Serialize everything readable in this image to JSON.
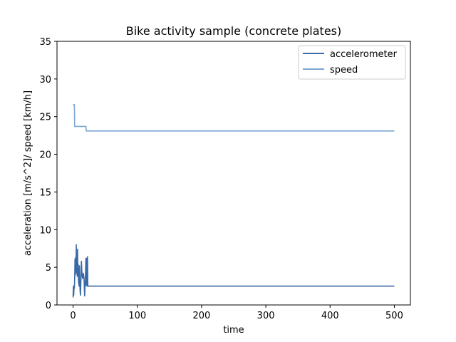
{
  "chart_data": {
    "type": "line",
    "title": "Bike activity sample (concrete plates)",
    "xlabel": "time",
    "ylabel": "acceleration [m/s^2]/ speed [km/h]",
    "xlim": [
      -25,
      525
    ],
    "ylim": [
      0,
      35
    ],
    "xticks": [
      0,
      100,
      200,
      300,
      400,
      500
    ],
    "yticks": [
      0,
      5,
      10,
      15,
      20,
      25,
      30,
      35
    ],
    "grid": false,
    "legend_position": "top-right",
    "series": [
      {
        "name": "accelerometer",
        "color": "#3a6aa6",
        "x": [
          0,
          0.5,
          1,
          1.5,
          2,
          2.5,
          3,
          3.5,
          4,
          4.5,
          5,
          5.5,
          6,
          6.5,
          7,
          7.5,
          8,
          8.5,
          9,
          9.5,
          10,
          10.5,
          11,
          11.5,
          12,
          12.5,
          13,
          14,
          15,
          16,
          17,
          18,
          19,
          20,
          20.5,
          21,
          21.5,
          22,
          22.5,
          23,
          24,
          25,
          500
        ],
        "y": [
          1.0,
          2.5,
          1.3,
          2.4,
          2.2,
          3.4,
          6.1,
          4.0,
          6.3,
          4.5,
          8.0,
          4.2,
          6.9,
          3.8,
          7.4,
          4.0,
          5.4,
          3.0,
          2.8,
          2.5,
          5.2,
          3.0,
          1.8,
          1.3,
          2.6,
          4.1,
          5.8,
          3.9,
          3.5,
          4.2,
          3.6,
          1.2,
          3.0,
          6.2,
          2.6,
          5.9,
          6.2,
          2.5,
          6.4,
          2.5,
          2.5,
          2.5,
          2.5
        ]
      },
      {
        "name": "speed",
        "color": "#7aa6d2",
        "x": [
          0,
          2,
          2.5,
          20,
          20.5,
          500
        ],
        "y": [
          26.6,
          26.6,
          23.7,
          23.7,
          23.1,
          23.1
        ]
      }
    ]
  }
}
